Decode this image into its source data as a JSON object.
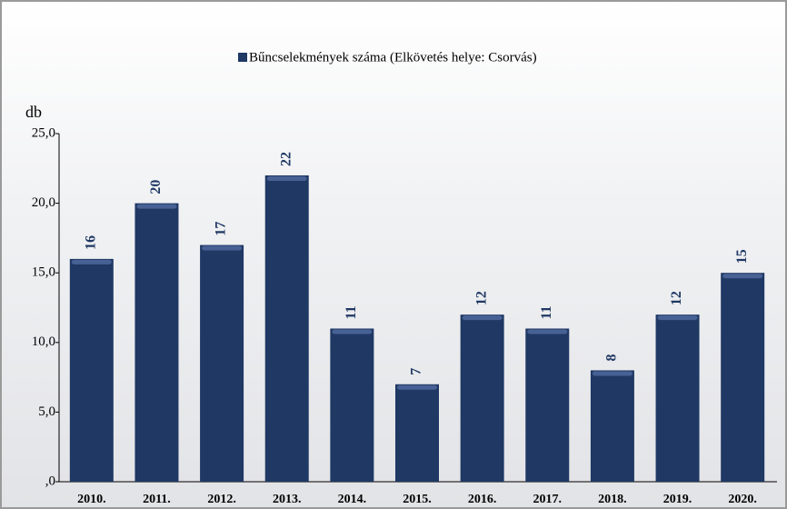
{
  "chart_data": {
    "type": "bar",
    "legend_label": "Bűncselekmények száma (Elkövetés helye: Csorvás)",
    "y_axis_label": "db",
    "categories": [
      "2010.",
      "2011.",
      "2012.",
      "2013.",
      "2014.",
      "2015.",
      "2016.",
      "2017.",
      "2018.",
      "2019.",
      "2020."
    ],
    "values": [
      16,
      20,
      17,
      22,
      11,
      7,
      12,
      11,
      8,
      12,
      15
    ],
    "color": "#1f3864",
    "ylim": [
      0,
      25
    ],
    "yticks": [
      {
        "value": 0,
        "label": ",0"
      },
      {
        "value": 5,
        "label": "5,0"
      },
      {
        "value": 10,
        "label": "10,0"
      },
      {
        "value": 15,
        "label": "15,0"
      },
      {
        "value": 20,
        "label": "20,0"
      },
      {
        "value": 25,
        "label": "25,0"
      }
    ],
    "grid": false,
    "legend": "top"
  }
}
